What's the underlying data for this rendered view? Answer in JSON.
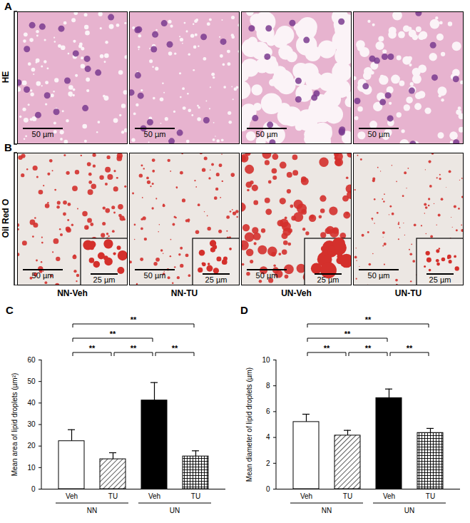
{
  "image_panels": {
    "rows": [
      {
        "panel": "A",
        "label": "HE",
        "scale_bar": "50 µm"
      },
      {
        "panel": "B",
        "label": "Oil Red O",
        "scale_bar": "50 µm",
        "inset_scale_bar": "25 µm"
      }
    ],
    "groups": [
      "NN-Veh",
      "NN-TU",
      "UN-Veh",
      "UN-TU"
    ]
  },
  "chart_data": [
    {
      "panel": "C",
      "type": "bar",
      "ylabel": "Mean area of lipid droplets (µm²)",
      "categories": [
        "Veh",
        "TU",
        "Veh",
        "TU"
      ],
      "groups": [
        {
          "name": "NN",
          "span": [
            0,
            1
          ]
        },
        {
          "name": "UN",
          "span": [
            2,
            3
          ]
        }
      ],
      "values": [
        22.3,
        13.9,
        41.2,
        15.2
      ],
      "errors": [
        5.3,
        3.0,
        8.3,
        2.6
      ],
      "colors": [
        "#ffffff",
        "#ffffff",
        "#000000",
        "#ffffff"
      ],
      "ylim": [
        0,
        60
      ],
      "yticks": [
        0,
        10,
        20,
        30,
        40,
        50,
        60
      ],
      "annotations": [
        {
          "from": 0,
          "to": 3,
          "label": "**"
        },
        {
          "from": 0,
          "to": 2,
          "label": "**"
        },
        {
          "from": 0,
          "to": 1,
          "label": "**"
        },
        {
          "from": 1,
          "to": 2,
          "label": "**"
        },
        {
          "from": 2,
          "to": 3,
          "label": "**"
        }
      ]
    },
    {
      "panel": "D",
      "type": "bar",
      "ylabel": "Mean diameter of lipid droplets (µm)",
      "categories": [
        "Veh",
        "TU",
        "Veh",
        "TU"
      ],
      "groups": [
        {
          "name": "NN",
          "span": [
            0,
            1
          ]
        },
        {
          "name": "UN",
          "span": [
            2,
            3
          ]
        }
      ],
      "values": [
        5.2,
        4.15,
        7.05,
        4.35
      ],
      "errors": [
        0.6,
        0.4,
        0.7,
        0.35
      ],
      "colors": [
        "#ffffff",
        "#ffffff",
        "#000000",
        "#ffffff"
      ],
      "ylim": [
        0,
        10
      ],
      "yticks": [
        0,
        2,
        4,
        6,
        8,
        10
      ],
      "annotations": [
        {
          "from": 0,
          "to": 3,
          "label": "**"
        },
        {
          "from": 0,
          "to": 2,
          "label": "**"
        },
        {
          "from": 0,
          "to": 1,
          "label": "**"
        },
        {
          "from": 1,
          "to": 2,
          "label": "**"
        },
        {
          "from": 2,
          "to": 3,
          "label": "**"
        }
      ]
    }
  ]
}
